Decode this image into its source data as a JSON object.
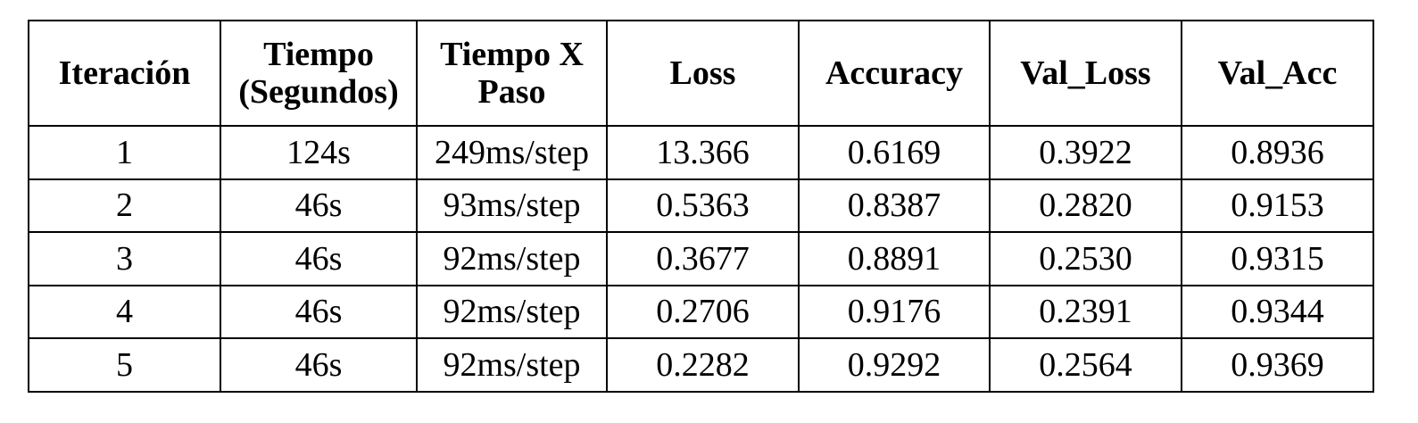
{
  "table": {
    "headers": [
      [
        "Iteración"
      ],
      [
        "Tiempo",
        "(Segundos)"
      ],
      [
        "Tiempo X",
        "Paso"
      ],
      [
        "Loss"
      ],
      [
        "Accuracy"
      ],
      [
        "Val_Loss"
      ],
      [
        "Val_Acc"
      ]
    ],
    "rows": [
      [
        "1",
        "124s",
        "249ms/step",
        "13.366",
        "0.6169",
        "0.3922",
        "0.8936"
      ],
      [
        "2",
        "46s",
        "93ms/step",
        "0.5363",
        "0.8387",
        "0.2820",
        "0.9153"
      ],
      [
        "3",
        "46s",
        "92ms/step",
        "0.3677",
        "0.8891",
        "0.2530",
        "0.9315"
      ],
      [
        "4",
        "46s",
        "92ms/step",
        "0.2706",
        "0.9176",
        "0.2391",
        "0.9344"
      ],
      [
        "5",
        "46s",
        "92ms/step",
        "0.2282",
        "0.9292",
        "0.2564",
        "0.9369"
      ]
    ]
  }
}
